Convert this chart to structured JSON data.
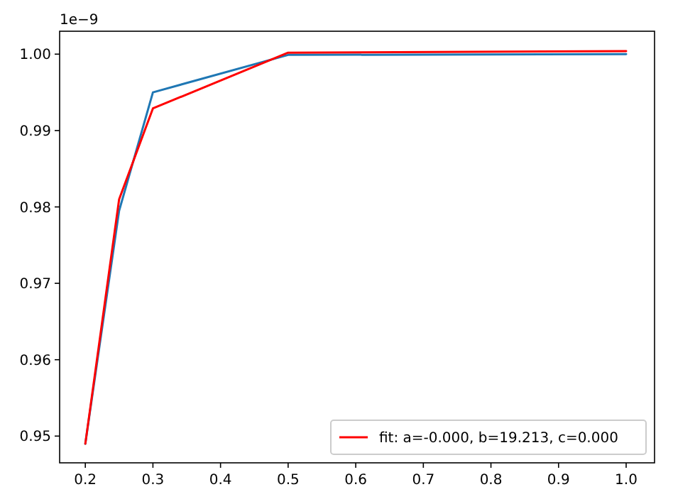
{
  "chart_data": {
    "type": "line",
    "x": [
      0.2,
      0.25,
      0.3,
      0.5,
      1.0
    ],
    "series": [
      {
        "color": "#1f77b4",
        "values": [
          0.949,
          0.9795,
          0.995,
          0.9999,
          1.0
        ]
      },
      {
        "name": "fit: a=-0.000, b=19.213, c=0.000",
        "color": "#ff0000",
        "values": [
          0.949,
          0.981,
          0.9929,
          1.0002,
          1.0004
        ]
      }
    ],
    "xlim": [
      0.162,
      1.042
    ],
    "ylim": [
      0.9465,
      1.003
    ],
    "xticks": [
      {
        "value": 0.2,
        "label": "0.2"
      },
      {
        "value": 0.3,
        "label": "0.3"
      },
      {
        "value": 0.4,
        "label": "0.4"
      },
      {
        "value": 0.5,
        "label": "0.5"
      },
      {
        "value": 0.6,
        "label": "0.6"
      },
      {
        "value": 0.7,
        "label": "0.7"
      },
      {
        "value": 0.8,
        "label": "0.8"
      },
      {
        "value": 0.9,
        "label": "0.9"
      },
      {
        "value": 1.0,
        "label": "1.0"
      }
    ],
    "yticks": [
      {
        "value": 0.95,
        "label": "0.95"
      },
      {
        "value": 0.96,
        "label": "0.96"
      },
      {
        "value": 0.97,
        "label": "0.97"
      },
      {
        "value": 0.98,
        "label": "0.98"
      },
      {
        "value": 0.99,
        "label": "0.99"
      },
      {
        "value": 1.0,
        "label": "1.00"
      }
    ],
    "annotations": [
      "1e−9"
    ],
    "legend": "bottom right",
    "grid": false,
    "marker": "none",
    "line_style": "solid"
  }
}
